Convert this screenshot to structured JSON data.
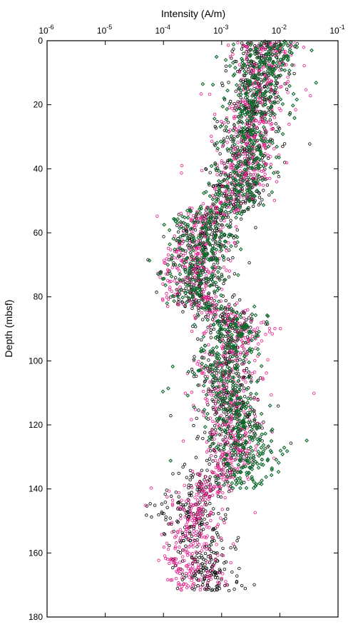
{
  "chart_data": {
    "type": "scatter",
    "title": "",
    "xlabel": "Intensity (A/m)",
    "ylabel": "Depth (mbsf)",
    "x_scale": "log",
    "x_axis_position": "top",
    "y_axis_inverted": true,
    "xlim": [
      1e-06,
      0.1
    ],
    "ylim": [
      0,
      180
    ],
    "x_ticks": [
      {
        "value": 1e-06,
        "base": "10",
        "exp": "-6"
      },
      {
        "value": 1e-05,
        "base": "10",
        "exp": "-5"
      },
      {
        "value": 0.0001,
        "base": "10",
        "exp": "-4"
      },
      {
        "value": 0.001,
        "base": "10",
        "exp": "-3"
      },
      {
        "value": 0.01,
        "base": "10",
        "exp": "-2"
      },
      {
        "value": 0.1,
        "base": "10",
        "exp": "-1"
      }
    ],
    "y_ticks": [
      0,
      20,
      40,
      60,
      80,
      100,
      120,
      140,
      160,
      180
    ],
    "grid": false,
    "legend": "none",
    "series": [
      {
        "color": "#000000",
        "marker": "open-circle",
        "depth_max": 172,
        "trend_depth": [
          0,
          10,
          20,
          30,
          40,
          50,
          55,
          60,
          70,
          80,
          85,
          90,
          100,
          110,
          120,
          130,
          140,
          145,
          150,
          160,
          172
        ],
        "trend_log_intensity": [
          -2.2,
          -2.4,
          -2.5,
          -2.5,
          -2.7,
          -2.8,
          -3.2,
          -3.3,
          -3.4,
          -3.5,
          -3.0,
          -2.8,
          -3.0,
          -2.9,
          -2.8,
          -2.8,
          -3.4,
          -3.6,
          -3.5,
          -3.4,
          -3.2
        ]
      },
      {
        "color": "#e8168a",
        "marker": "open-circle",
        "depth_max": 172,
        "trend_depth": [
          0,
          10,
          20,
          30,
          40,
          50,
          55,
          60,
          70,
          80,
          85,
          90,
          100,
          110,
          120,
          130,
          140,
          145,
          150,
          160,
          172
        ],
        "trend_log_intensity": [
          -2.2,
          -2.3,
          -2.4,
          -2.5,
          -2.6,
          -2.8,
          -3.3,
          -3.4,
          -3.5,
          -3.5,
          -3.0,
          -2.7,
          -3.0,
          -2.9,
          -2.8,
          -2.8,
          -3.2,
          -3.5,
          -3.4,
          -3.6,
          -3.4
        ]
      },
      {
        "color": "#0e6a2c",
        "marker": "open-diamond",
        "depth_max": 140,
        "trend_depth": [
          0,
          10,
          20,
          30,
          40,
          50,
          55,
          60,
          70,
          80,
          85,
          90,
          100,
          110,
          120,
          130,
          140
        ],
        "trend_log_intensity": [
          -2.1,
          -2.3,
          -2.4,
          -2.5,
          -2.6,
          -2.8,
          -3.3,
          -3.3,
          -3.4,
          -3.5,
          -2.9,
          -2.7,
          -3.0,
          -2.9,
          -2.7,
          -2.6,
          -2.6
        ]
      }
    ]
  }
}
